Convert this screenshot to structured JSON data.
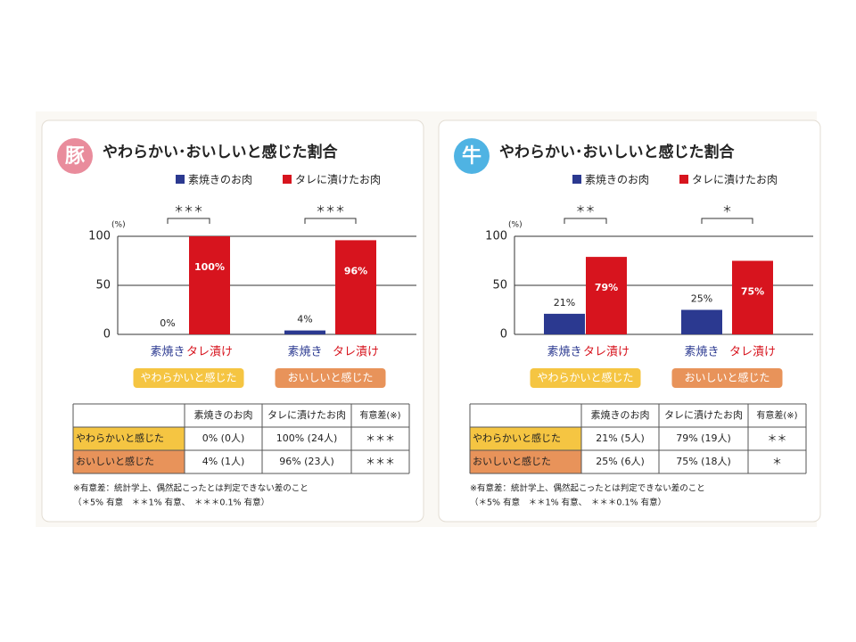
{
  "chart_data": [
    {
      "type": "bar",
      "icon": "豚",
      "icon_color": "#e98c9c",
      "title": "やわらかい･おいしいと感じた割合",
      "y_unit": "(%)",
      "ylim": [
        0,
        100
      ],
      "yticks": [
        0,
        50,
        100
      ],
      "bar_labels": [
        "素焼き",
        "タレ漬け"
      ],
      "categories": [
        "やわらかいと感じた",
        "おいしいと感じた"
      ],
      "category_colors": [
        "#f5c542",
        "#e8935a"
      ],
      "significance": [
        "＊＊＊",
        "＊＊＊"
      ],
      "series": [
        {
          "name": "素焼きのお肉",
          "color": "#2b3990",
          "values": [
            0,
            4
          ],
          "value_labels": [
            "0%",
            "4%"
          ]
        },
        {
          "name": "タレに漬けたお肉",
          "color": "#d7141e",
          "values": [
            100,
            96
          ],
          "value_labels": [
            "100%",
            "96%"
          ]
        }
      ],
      "table": {
        "columns": [
          "素焼きのお肉",
          "タレに漬けたお肉",
          "有意差(※)"
        ],
        "rows": [
          [
            "0% (0人)",
            "100% (24人)",
            "＊＊＊"
          ],
          [
            "4% (1人)",
            "96% (23人)",
            "＊＊＊"
          ]
        ]
      },
      "notes": [
        "※有意差：統計学上、偶然起こったとは判定できない差のこと",
        "（＊5% 有意　＊＊1% 有意、　＊＊＊0.1% 有意）"
      ]
    },
    {
      "type": "bar",
      "icon": "牛",
      "icon_color": "#4fb3e3",
      "title": "やわらかい･おいしいと感じた割合",
      "y_unit": "(%)",
      "ylim": [
        0,
        100
      ],
      "yticks": [
        0,
        50,
        100
      ],
      "bar_labels": [
        "素焼き",
        "タレ漬け"
      ],
      "categories": [
        "やわらかいと感じた",
        "おいしいと感じた"
      ],
      "category_colors": [
        "#f5c542",
        "#e8935a"
      ],
      "significance": [
        "＊＊",
        "＊"
      ],
      "series": [
        {
          "name": "素焼きのお肉",
          "color": "#2b3990",
          "values": [
            21,
            25
          ],
          "value_labels": [
            "21%",
            "25%"
          ]
        },
        {
          "name": "タレに漬けたお肉",
          "color": "#d7141e",
          "values": [
            79,
            75
          ],
          "value_labels": [
            "79%",
            "75%"
          ]
        }
      ],
      "table": {
        "columns": [
          "素焼きのお肉",
          "タレに漬けたお肉",
          "有意差(※)"
        ],
        "rows": [
          [
            "21% (5人)",
            "79% (19人)",
            "＊＊"
          ],
          [
            "25% (6人)",
            "75% (18人)",
            "＊"
          ]
        ]
      },
      "notes": [
        "※有意差：統計学上、偶然起こったとは判定できない差のこと",
        "（＊5% 有意　＊＊1% 有意、　＊＊＊0.1% 有意）"
      ]
    }
  ]
}
